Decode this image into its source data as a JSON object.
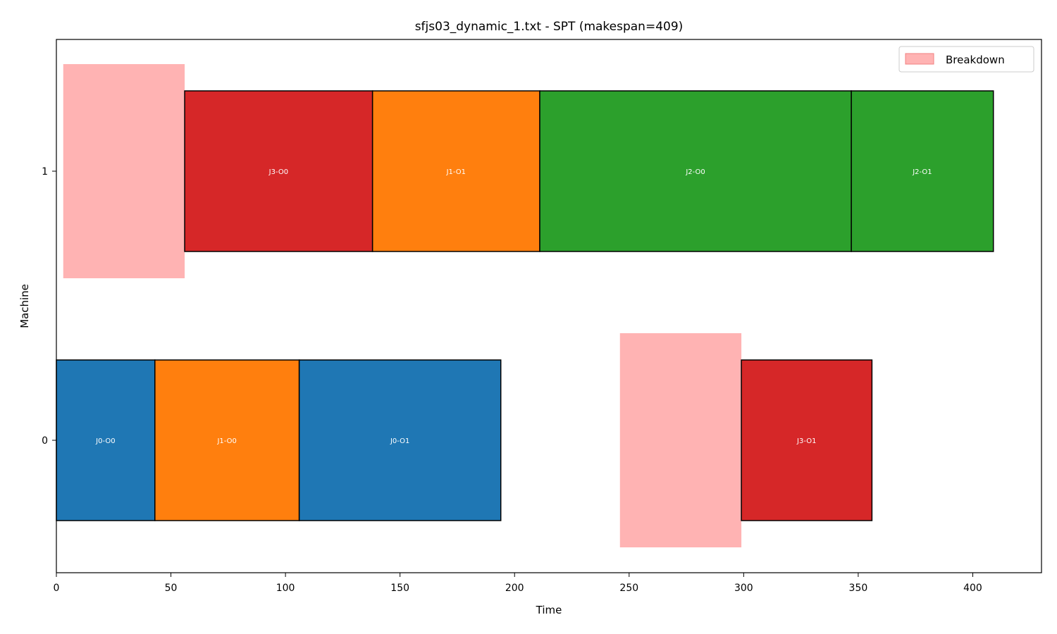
{
  "chart_data": {
    "type": "gantt",
    "title": "sfjs03_dynamic_1.txt - SPT (makespan=409)",
    "xlabel": "Time",
    "ylabel": "Machine",
    "xlim": [
      0,
      430
    ],
    "xticks": [
      0,
      50,
      100,
      150,
      200,
      250,
      300,
      350,
      400
    ],
    "machines": [
      "0",
      "1"
    ],
    "grid": false,
    "legend": {
      "placement": "top-right",
      "entries": [
        {
          "label": "Breakdown",
          "color": "#ffb3b3",
          "edge": "#f08080"
        }
      ]
    },
    "job_colors": {
      "J0": "#1f77b4",
      "J1": "#ff7f0e",
      "J2": "#2ca02c",
      "J3": "#d62728"
    },
    "breakdown_color": "#ffb3b3",
    "operations": [
      {
        "label": "J0-O0",
        "job": "J0",
        "machine": 0,
        "start": 0,
        "end": 43
      },
      {
        "label": "J1-O0",
        "job": "J1",
        "machine": 0,
        "start": 43,
        "end": 106
      },
      {
        "label": "J0-O1",
        "job": "J0",
        "machine": 0,
        "start": 106,
        "end": 194
      },
      {
        "label": "J3-O1",
        "job": "J3",
        "machine": 0,
        "start": 299,
        "end": 356
      },
      {
        "label": "J3-O0",
        "job": "J3",
        "machine": 1,
        "start": 56,
        "end": 138
      },
      {
        "label": "J1-O1",
        "job": "J1",
        "machine": 1,
        "start": 138,
        "end": 211
      },
      {
        "label": "J2-O0",
        "job": "J2",
        "machine": 1,
        "start": 211,
        "end": 347
      },
      {
        "label": "J2-O1",
        "job": "J2",
        "machine": 1,
        "start": 347,
        "end": 409
      }
    ],
    "breakdowns": [
      {
        "machine": 0,
        "start": 246,
        "end": 299
      },
      {
        "machine": 1,
        "start": 3,
        "end": 56
      }
    ]
  }
}
